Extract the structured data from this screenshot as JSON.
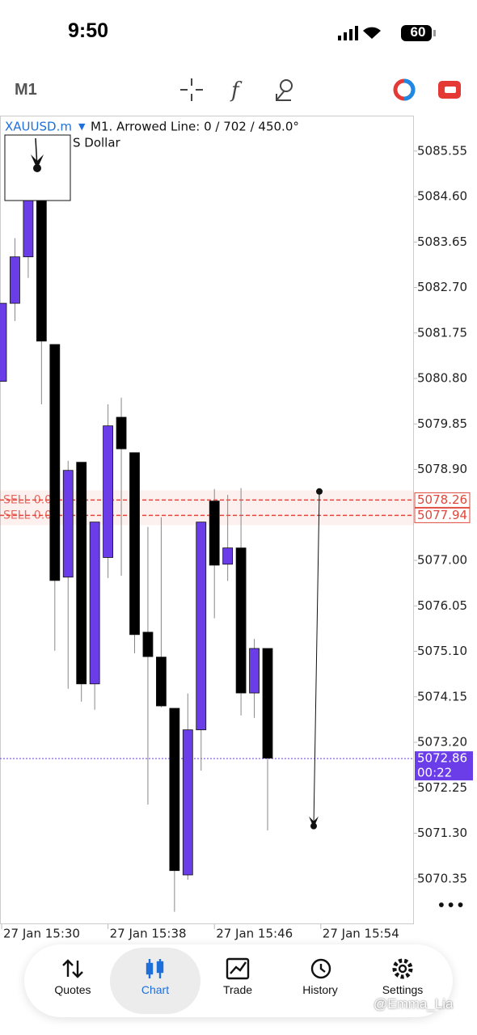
{
  "status_bar": {
    "time": "9:50",
    "battery": "60"
  },
  "toolbar": {
    "timeframe": "M1"
  },
  "chart_data": {
    "type": "candlestick",
    "symbol": "XAUUSD.m",
    "info": "M1. Arrowed Line: 0 / 702 / 450.0°",
    "subtitle": "S Dollar",
    "candles": {
      "open": [
        5080.74,
        5082.37,
        5083.34,
        5084.82,
        5081.51,
        5076.65,
        5079.05,
        5074.42,
        5077.06,
        5079.99,
        5079.25,
        5075.5,
        5074.98,
        5073.91,
        5070.43,
        5073.46,
        5078.24,
        5076.92,
        5077.26,
        5074.23,
        5075.16
      ],
      "high": [
        5082.37,
        5083.73,
        5084.9,
        5084.9,
        5081.51,
        5079.08,
        5079.05,
        5077.8,
        5080.26,
        5080.4,
        5079.25,
        5077.7,
        5077.9,
        5073.91,
        5074.22,
        5077.8,
        5078.49,
        5078.37,
        5078.51,
        5075.36,
        5075.16
      ],
      "low": [
        5080.74,
        5082.0,
        5082.9,
        5080.26,
        5075.11,
        5074.32,
        5074.05,
        5073.88,
        5076.63,
        5076.68,
        5075.06,
        5071.9,
        5073.93,
        5069.66,
        5070.33,
        5072.61,
        5075.79,
        5076.57,
        5073.76,
        5073.71,
        5071.36
      ],
      "close": [
        5082.37,
        5083.34,
        5084.52,
        5081.58,
        5076.58,
        5078.88,
        5074.42,
        5077.8,
        5079.81,
        5079.33,
        5075.45,
        5074.99,
        5073.96,
        5070.52,
        5073.46,
        5077.8,
        5076.9,
        5077.26,
        5074.23,
        5075.16,
        5072.87
      ]
    },
    "up_color": "#6a3de8",
    "down_color": "#000000",
    "ylim": [
      5069.4,
      5086.29
    ],
    "yticks": [
      5085.55,
      {
        "value": 5084.6,
        "label": "5084.60"
      },
      5083.65,
      {
        "value": 5082.7,
        "label": "5082.70"
      },
      5081.75,
      {
        "value": 5080.8,
        "label": "5080.80"
      },
      5079.85,
      {
        "value": 5078.9,
        "label": "5078.90"
      },
      {
        "value": 5077.0,
        "label": "5077.00"
      },
      5076.05,
      {
        "value": 5075.1,
        "label": "5075.10"
      },
      5074.15,
      {
        "value": 5073.2,
        "label": "5073.20"
      },
      5072.25,
      {
        "value": 5071.3,
        "label": "5071.30"
      },
      5070.35
    ],
    "xtick_labels": [
      "27 Jan 15:30",
      "27 Jan 15:38",
      "27 Jan 15:46",
      "27 Jan 15:54"
    ],
    "order_lines": {
      "label": "SELL 0.01",
      "values": [
        5078.26,
        5077.94
      ],
      "color": "#e0473a"
    },
    "current_price": {
      "value": 5072.86,
      "countdown": "00:22",
      "color": "#6a3de8"
    },
    "arrowed_line": {
      "start": 5078.44,
      "end": 5071.45
    }
  },
  "nav": [
    "Quotes",
    "Chart",
    "Trade",
    "History",
    "Settings"
  ],
  "watermark": "@Emma_Lia"
}
